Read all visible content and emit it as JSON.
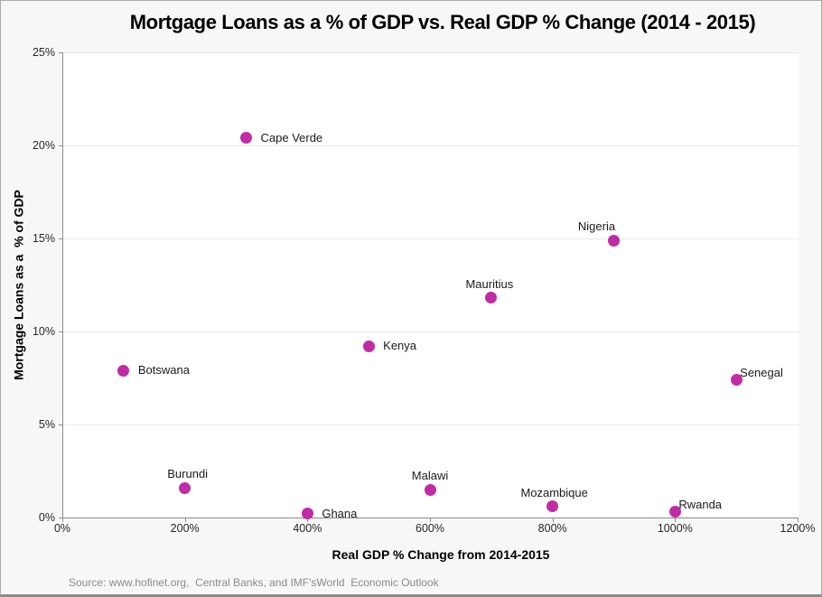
{
  "chart_data": {
    "type": "scatter",
    "title": "Mortgage Loans as a % of GDP vs. Real GDP % Change (2014 - 2015)",
    "xlabel": "Real GDP % Change from 2014-2015",
    "ylabel": "Mortgage Loans as a  % of GDP",
    "source": "Source: www.hofinet.org,  Central Banks, and IMF'sWorld  Economic Outlook",
    "xlim": [
      0,
      1200
    ],
    "ylim": [
      0,
      25
    ],
    "x_ticks": {
      "values": [
        0,
        200,
        400,
        600,
        800,
        1000,
        1200
      ],
      "labels": [
        "0%",
        "200%",
        "400%",
        "600%",
        "800%",
        "1000%",
        "1200%"
      ]
    },
    "y_ticks": {
      "values": [
        0,
        5,
        10,
        15,
        20,
        25
      ],
      "labels": [
        "0%",
        "5%",
        "10%",
        "15%",
        "20%",
        "25%"
      ]
    },
    "grid": "horizontal",
    "legend": "none",
    "marker_color": "#C12BA5",
    "points": [
      {
        "label": "Botswana",
        "x": 100,
        "y": 7.9,
        "label_pos": "right",
        "dx": 0
      },
      {
        "label": "Burundi",
        "x": 200,
        "y": 1.6,
        "label_pos": "above",
        "dx": 3
      },
      {
        "label": "Cape Verde",
        "x": 300,
        "y": 20.4,
        "label_pos": "right",
        "dx": 0
      },
      {
        "label": "Ghana",
        "x": 400,
        "y": 0.2,
        "label_pos": "right",
        "dx": 0
      },
      {
        "label": "Kenya",
        "x": 500,
        "y": 9.2,
        "label_pos": "right",
        "dx": 0
      },
      {
        "label": "Malawi",
        "x": 600,
        "y": 1.5,
        "label_pos": "above",
        "dx": 0
      },
      {
        "label": "Mauritius",
        "x": 700,
        "y": 11.8,
        "label_pos": "above",
        "dx": -2
      },
      {
        "label": "Mozambique",
        "x": 800,
        "y": 0.6,
        "label_pos": "above",
        "dx": 2
      },
      {
        "label": "Nigeria",
        "x": 900,
        "y": 14.9,
        "label_pos": "above",
        "dx": -19
      },
      {
        "label": "Rwanda",
        "x": 1000,
        "y": 0.3,
        "label_pos": "above-right",
        "dx": 0
      },
      {
        "label": "Senegal",
        "x": 1100,
        "y": 7.4,
        "label_pos": "above-right",
        "dx": 0
      }
    ]
  }
}
